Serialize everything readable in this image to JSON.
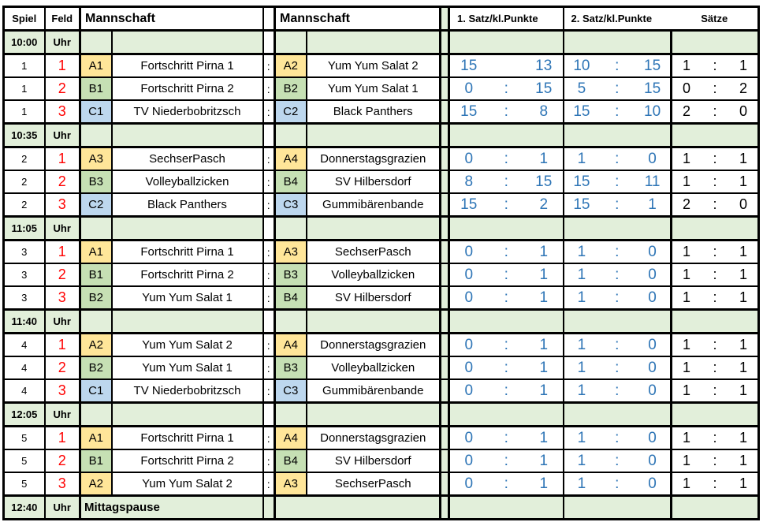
{
  "table": {
    "headers": {
      "spiel": "Spiel",
      "feld": "Feld",
      "mannschaft_left": "Mannschaft",
      "mannschaft_right": "Mannschaft",
      "satz1": "1. Satz/kl.Punkte",
      "satz2": "2. Satz/kl.Punkte",
      "saetze": "Sätze"
    },
    "colors": {
      "row_green": "#E2EFDA",
      "code_a_yellow": "#FFE699",
      "code_b_green": "#C6E0B4",
      "code_c_blue": "#BDD7EE",
      "feld_red": "#FF0000",
      "score_blue": "#2E75B6",
      "border_black": "#000000"
    },
    "blocks": [
      {
        "time": "10:00",
        "unit": "Uhr",
        "games": [
          {
            "spiel": "1",
            "feld": "1",
            "code1": "A1",
            "team1": "Fortschritt Pirna 1",
            "vs": ":",
            "code2": "A2",
            "team2": "Yum Yum Salat 2",
            "s1a": "15",
            "s1sep": "",
            "s1b": "13",
            "s2a": "10",
            "s2sep": ":",
            "s2b": "15",
            "seta": "1",
            "setsep": ":",
            "setb": "1"
          },
          {
            "spiel": "1",
            "feld": "2",
            "code1": "B1",
            "team1": "Fortschritt Pirna 2",
            "vs": ":",
            "code2": "B2",
            "team2": "Yum Yum Salat 1",
            "s1a": "0",
            "s1sep": ":",
            "s1b": "15",
            "s2a": "5",
            "s2sep": ":",
            "s2b": "15",
            "seta": "0",
            "setsep": ":",
            "setb": "2"
          },
          {
            "spiel": "1",
            "feld": "3",
            "code1": "C1",
            "team1": "TV Niederbobritzsch",
            "vs": ":",
            "code2": "C2",
            "team2": "Black Panthers",
            "s1a": "15",
            "s1sep": ":",
            "s1b": "8",
            "s2a": "15",
            "s2sep": ":",
            "s2b": "10",
            "seta": "2",
            "setsep": ":",
            "setb": "0"
          }
        ]
      },
      {
        "time": "10:35",
        "unit": "Uhr",
        "games": [
          {
            "spiel": "2",
            "feld": "1",
            "code1": "A3",
            "team1": "SechserPasch",
            "vs": ":",
            "code2": "A4",
            "team2": "Donnerstagsgrazien",
            "s1a": "0",
            "s1sep": ":",
            "s1b": "1",
            "s2a": "1",
            "s2sep": ":",
            "s2b": "0",
            "seta": "1",
            "setsep": ":",
            "setb": "1"
          },
          {
            "spiel": "2",
            "feld": "2",
            "code1": "B3",
            "team1": "Volleyballzicken",
            "vs": ":",
            "code2": "B4",
            "team2": "SV Hilbersdorf",
            "s1a": "8",
            "s1sep": ":",
            "s1b": "15",
            "s2a": "15",
            "s2sep": ":",
            "s2b": "11",
            "seta": "1",
            "setsep": ":",
            "setb": "1"
          },
          {
            "spiel": "2",
            "feld": "3",
            "code1": "C2",
            "team1": "Black Panthers",
            "vs": ":",
            "code2": "C3",
            "team2": "Gummibärenbande",
            "s1a": "15",
            "s1sep": ":",
            "s1b": "2",
            "s2a": "15",
            "s2sep": ":",
            "s2b": "1",
            "seta": "2",
            "setsep": ":",
            "setb": "0"
          }
        ]
      },
      {
        "time": "11:05",
        "unit": "Uhr",
        "games": [
          {
            "spiel": "3",
            "feld": "1",
            "code1": "A1",
            "team1": "Fortschritt Pirna 1",
            "vs": ":",
            "code2": "A3",
            "team2": "SechserPasch",
            "s1a": "0",
            "s1sep": ":",
            "s1b": "1",
            "s2a": "1",
            "s2sep": ":",
            "s2b": "0",
            "seta": "1",
            "setsep": ":",
            "setb": "1"
          },
          {
            "spiel": "3",
            "feld": "2",
            "code1": "B1",
            "team1": "Fortschritt Pirna 2",
            "vs": ":",
            "code2": "B3",
            "team2": "Volleyballzicken",
            "s1a": "0",
            "s1sep": ":",
            "s1b": "1",
            "s2a": "1",
            "s2sep": ":",
            "s2b": "0",
            "seta": "1",
            "setsep": ":",
            "setb": "1"
          },
          {
            "spiel": "3",
            "feld": "3",
            "code1": "B2",
            "team1": "Yum Yum Salat 1",
            "vs": ":",
            "code2": "B4",
            "team2": "SV Hilbersdorf",
            "s1a": "0",
            "s1sep": ":",
            "s1b": "1",
            "s2a": "1",
            "s2sep": ":",
            "s2b": "0",
            "seta": "1",
            "setsep": ":",
            "setb": "1"
          }
        ]
      },
      {
        "time": "11:40",
        "unit": "Uhr",
        "games": [
          {
            "spiel": "4",
            "feld": "1",
            "code1": "A2",
            "team1": "Yum Yum Salat 2",
            "vs": ":",
            "code2": "A4",
            "team2": "Donnerstagsgrazien",
            "s1a": "0",
            "s1sep": ":",
            "s1b": "1",
            "s2a": "1",
            "s2sep": ":",
            "s2b": "0",
            "seta": "1",
            "setsep": ":",
            "setb": "1"
          },
          {
            "spiel": "4",
            "feld": "2",
            "code1": "B2",
            "team1": "Yum Yum Salat 1",
            "vs": ":",
            "code2": "B3",
            "team2": "Volleyballzicken",
            "s1a": "0",
            "s1sep": ":",
            "s1b": "1",
            "s2a": "1",
            "s2sep": ":",
            "s2b": "0",
            "seta": "1",
            "setsep": ":",
            "setb": "1"
          },
          {
            "spiel": "4",
            "feld": "3",
            "code1": "C1",
            "team1": "TV Niederbobritzsch",
            "vs": ":",
            "code2": "C3",
            "team2": "Gummibärenbande",
            "s1a": "0",
            "s1sep": ":",
            "s1b": "1",
            "s2a": "1",
            "s2sep": ":",
            "s2b": "0",
            "seta": "1",
            "setsep": ":",
            "setb": "1"
          }
        ]
      },
      {
        "time": "12:05",
        "unit": "Uhr",
        "games": [
          {
            "spiel": "5",
            "feld": "1",
            "code1": "A1",
            "team1": "Fortschritt Pirna 1",
            "vs": ":",
            "code2": "A4",
            "team2": "Donnerstagsgrazien",
            "s1a": "0",
            "s1sep": ":",
            "s1b": "1",
            "s2a": "1",
            "s2sep": ":",
            "s2b": "0",
            "seta": "1",
            "setsep": ":",
            "setb": "1"
          },
          {
            "spiel": "5",
            "feld": "2",
            "code1": "B1",
            "team1": "Fortschritt Pirna 2",
            "vs": ":",
            "code2": "B4",
            "team2": "SV Hilbersdorf",
            "s1a": "0",
            "s1sep": ":",
            "s1b": "1",
            "s2a": "1",
            "s2sep": ":",
            "s2b": "0",
            "seta": "1",
            "setsep": ":",
            "setb": "1"
          },
          {
            "spiel": "5",
            "feld": "3",
            "code1": "A2",
            "team1": "Yum Yum Salat 2",
            "vs": ":",
            "code2": "A3",
            "team2": "SechserPasch",
            "s1a": "0",
            "s1sep": ":",
            "s1b": "1",
            "s2a": "1",
            "s2sep": ":",
            "s2b": "0",
            "seta": "1",
            "setsep": ":",
            "setb": "1"
          }
        ]
      }
    ],
    "footer": {
      "time": "12:40",
      "unit": "Uhr",
      "label": "Mittagspause"
    }
  }
}
